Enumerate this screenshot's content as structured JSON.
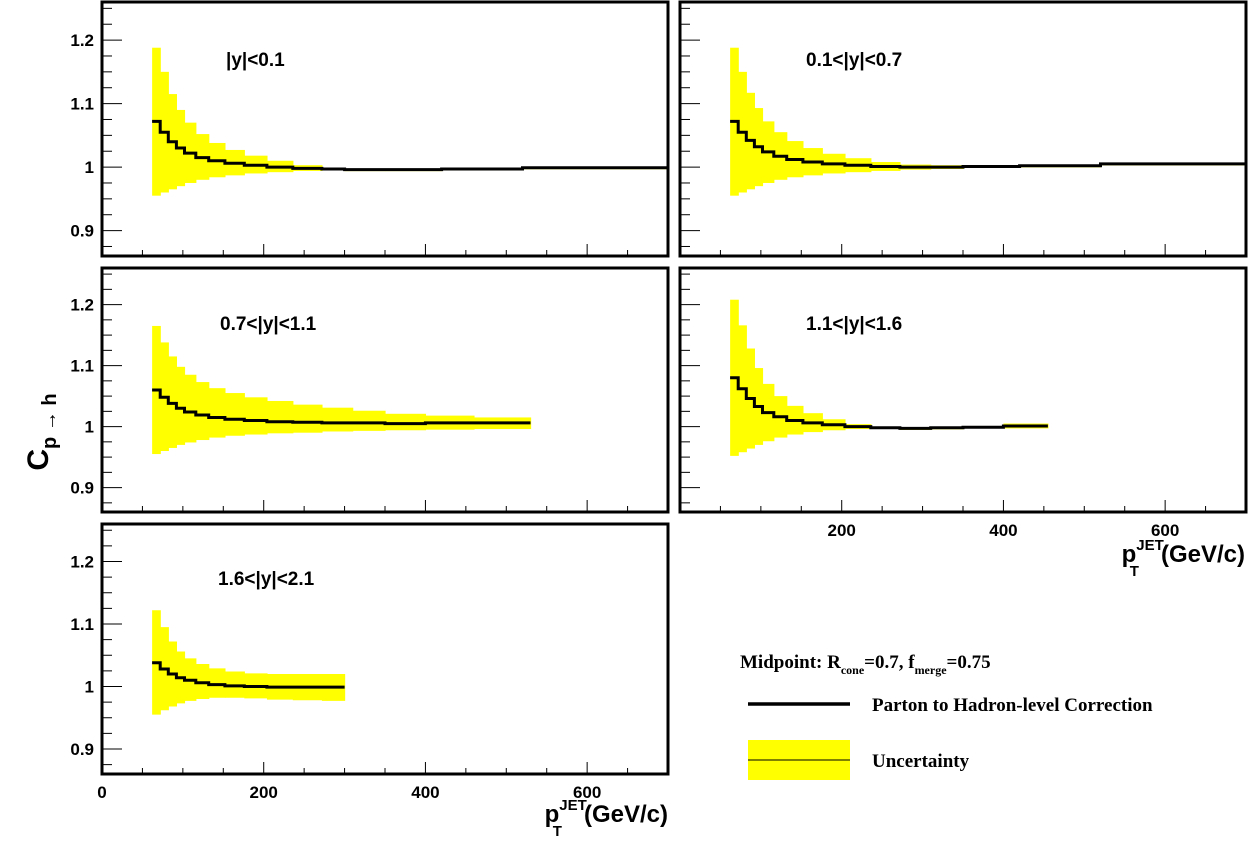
{
  "colors": {
    "band": "#ffff00",
    "line": "#000000",
    "frame": "#000000"
  },
  "axis": {
    "ylabel_main": "C",
    "ylabel_sub": "p → h",
    "xlabel_main": "p",
    "xlabel_sup": "JET",
    "xlabel_sub": "T",
    "xlabel_unit": "(GeV/c)"
  },
  "legend": {
    "title_prefix": "Midpoint:  R",
    "title_r_sub": "cone",
    "title_r_val": "=0.7,  f",
    "title_f_sub": "merge",
    "title_f_val": "=0.75",
    "line_label": "Parton to Hadron-level Correction",
    "band_label": "Uncertainty"
  },
  "chart_data": [
    {
      "type": "line",
      "title": "|y|<0.1",
      "xlim": [
        0,
        700
      ],
      "ylim": [
        0.86,
        1.26
      ],
      "xticks": [],
      "yticks": [
        "0.9",
        "1",
        "1.1",
        "1.2"
      ],
      "bin_edges": [
        62,
        72,
        82,
        92,
        102,
        116,
        132,
        152,
        176,
        204,
        236,
        272,
        300,
        350,
        420,
        520,
        700
      ],
      "values": [
        1.072,
        1.055,
        1.04,
        1.03,
        1.022,
        1.015,
        1.01,
        1.006,
        1.003,
        1.0,
        0.998,
        0.997,
        0.996,
        0.996,
        0.997,
        0.999
      ],
      "band_low": [
        0.955,
        0.96,
        0.965,
        0.97,
        0.975,
        0.98,
        0.984,
        0.987,
        0.99,
        0.992,
        0.994,
        0.995,
        0.996,
        0.996,
        0.997,
        0.999
      ],
      "band_high": [
        1.188,
        1.15,
        1.115,
        1.09,
        1.07,
        1.052,
        1.038,
        1.027,
        1.018,
        1.01,
        1.003,
        0.999,
        0.996,
        0.996,
        0.997,
        0.999
      ]
    },
    {
      "type": "line",
      "title": "0.1<|y|<0.7",
      "xlim": [
        0,
        700
      ],
      "ylim": [
        0.86,
        1.26
      ],
      "xticks": [],
      "yticks": [],
      "bin_edges": [
        62,
        72,
        82,
        92,
        102,
        116,
        132,
        152,
        176,
        204,
        236,
        272,
        310,
        350,
        420,
        520,
        700
      ],
      "values": [
        1.072,
        1.055,
        1.042,
        1.032,
        1.024,
        1.017,
        1.012,
        1.008,
        1.005,
        1.003,
        1.001,
        1.0,
        1.0,
        1.001,
        1.002,
        1.005
      ],
      "band_low": [
        0.955,
        0.96,
        0.965,
        0.97,
        0.975,
        0.98,
        0.984,
        0.987,
        0.99,
        0.992,
        0.994,
        0.996,
        0.997,
        1.001,
        1.002,
        1.005
      ],
      "band_high": [
        1.188,
        1.15,
        1.117,
        1.093,
        1.072,
        1.055,
        1.041,
        1.03,
        1.021,
        1.014,
        1.008,
        1.004,
        1.003,
        1.001,
        1.002,
        1.005
      ]
    },
    {
      "type": "line",
      "title": "0.7<|y|<1.1",
      "xlim": [
        0,
        700
      ],
      "ylim": [
        0.86,
        1.26
      ],
      "xticks": [],
      "yticks": [
        "0.9",
        "1",
        "1.1",
        "1.2"
      ],
      "bin_edges": [
        62,
        72,
        82,
        92,
        102,
        116,
        132,
        152,
        176,
        204,
        236,
        272,
        310,
        350,
        400,
        460,
        530
      ],
      "values": [
        1.06,
        1.048,
        1.038,
        1.03,
        1.024,
        1.019,
        1.015,
        1.012,
        1.01,
        1.008,
        1.007,
        1.006,
        1.006,
        1.005,
        1.006,
        1.006
      ],
      "band_low": [
        0.955,
        0.96,
        0.965,
        0.97,
        0.974,
        0.978,
        0.982,
        0.985,
        0.987,
        0.989,
        0.99,
        0.992,
        0.993,
        0.994,
        0.995,
        0.996
      ],
      "band_high": [
        1.165,
        1.138,
        1.115,
        1.098,
        1.085,
        1.073,
        1.063,
        1.055,
        1.048,
        1.042,
        1.036,
        1.031,
        1.026,
        1.021,
        1.018,
        1.015
      ]
    },
    {
      "type": "line",
      "title": "1.1<|y|<1.6",
      "xlim": [
        0,
        700
      ],
      "ylim": [
        0.86,
        1.26
      ],
      "xticks": [
        "200",
        "400",
        "600"
      ],
      "yticks": [],
      "bin_edges": [
        62,
        72,
        82,
        92,
        102,
        116,
        132,
        152,
        176,
        204,
        236,
        272,
        310,
        350,
        400,
        455
      ],
      "values": [
        1.08,
        1.062,
        1.046,
        1.033,
        1.023,
        1.016,
        1.01,
        1.006,
        1.003,
        1.0,
        0.998,
        0.997,
        0.998,
        0.999,
        1.001
      ],
      "band_low": [
        0.952,
        0.958,
        0.964,
        0.97,
        0.976,
        0.982,
        0.987,
        0.991,
        0.994,
        0.996,
        0.997,
        0.997,
        0.998,
        0.997,
        0.997
      ],
      "band_high": [
        1.208,
        1.166,
        1.128,
        1.096,
        1.07,
        1.05,
        1.034,
        1.022,
        1.012,
        1.004,
        0.999,
        0.997,
        0.998,
        1.001,
        1.005
      ]
    },
    {
      "type": "line",
      "title": "1.6<|y|<2.1",
      "xlim": [
        0,
        700
      ],
      "ylim": [
        0.86,
        1.26
      ],
      "xticks": [
        "0",
        "200",
        "400",
        "600"
      ],
      "yticks": [
        "0.9",
        "1",
        "1.1",
        "1.2"
      ],
      "bin_edges": [
        62,
        72,
        82,
        92,
        102,
        116,
        132,
        152,
        176,
        204,
        236,
        272,
        300
      ],
      "values": [
        1.038,
        1.028,
        1.02,
        1.014,
        1.01,
        1.006,
        1.003,
        1.001,
        1.0,
        0.999,
        0.999,
        0.999
      ],
      "band_low": [
        0.955,
        0.962,
        0.968,
        0.973,
        0.977,
        0.98,
        0.982,
        0.982,
        0.981,
        0.979,
        0.978,
        0.977
      ],
      "band_high": [
        1.122,
        1.095,
        1.072,
        1.056,
        1.045,
        1.036,
        1.029,
        1.024,
        1.021,
        1.02,
        1.02,
        1.02
      ]
    }
  ]
}
